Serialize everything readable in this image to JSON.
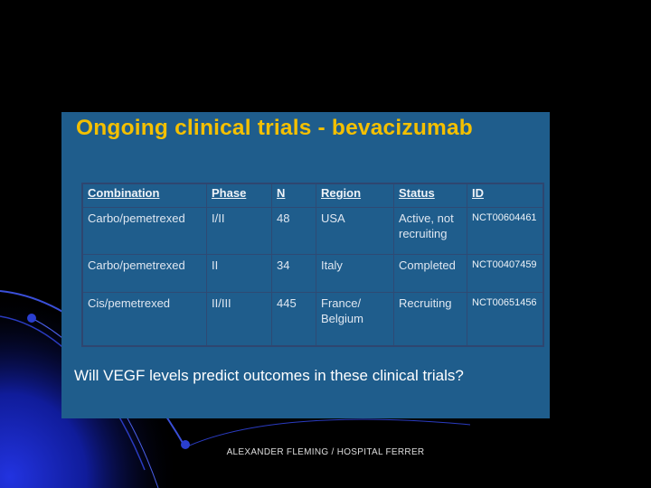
{
  "slide": {
    "title": "Ongoing clinical trials - bevacizumab",
    "question": "Will VEGF levels predict outcomes in these clinical trials?",
    "footer": "ALEXANDER FLEMING / HOSPITAL FERRER"
  },
  "table": {
    "headers": [
      "Combination",
      "Phase",
      "N",
      "Region",
      "Status",
      "ID"
    ],
    "rows": [
      [
        "Carbo/pemetrexed",
        "I/II",
        "48",
        "USA",
        "Active, not recruiting",
        "NCT00604461"
      ],
      [
        "Carbo/pemetrexed",
        "II",
        "34",
        "Italy",
        "Completed",
        "NCT00407459"
      ],
      [
        "Cis/pemetrexed",
        "II/III",
        "445",
        "France/ Belgium",
        "Recruiting",
        "NCT00651456"
      ]
    ]
  },
  "colors": {
    "background": "#000000",
    "panel": "#1f5d8c",
    "title": "#f4c000",
    "text": "#dfe7f1",
    "decor_blue": "#1a2fd0"
  }
}
